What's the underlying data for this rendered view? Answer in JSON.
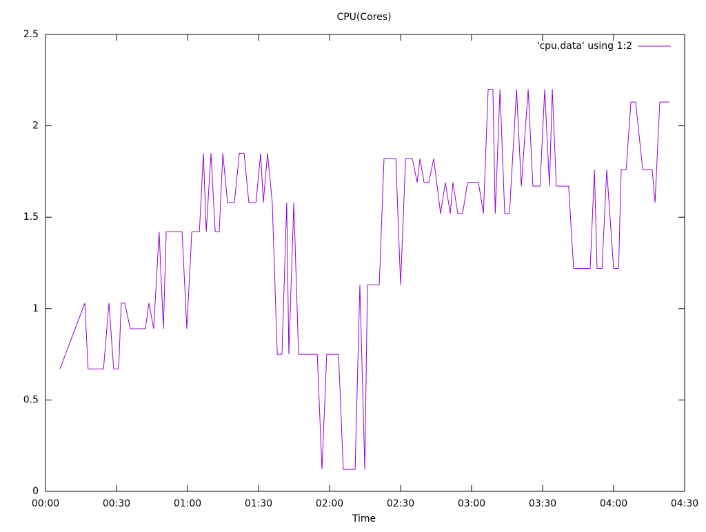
{
  "chart_data": {
    "type": "line",
    "title": "CPU(Cores)",
    "x_label": "Time",
    "x": [
      6.1,
      16.6,
      18,
      24.5,
      26.8,
      28.8,
      30.9,
      32,
      33.5,
      35.8,
      42.2,
      43.7,
      45.7,
      48,
      49.8,
      51,
      57.7,
      59.7,
      61.8,
      65,
      66.7,
      67.9,
      69.9,
      71.7,
      73.4,
      74.9,
      76.9,
      79.8,
      81.9,
      83.9,
      85.9,
      88.9,
      90.9,
      92,
      93.8,
      95.8,
      97.9,
      99.9,
      101.9,
      102.8,
      104.9,
      106.9,
      114.8,
      116.8,
      118.8,
      123.8,
      125.8,
      130.8,
      132.8,
      134.9,
      136,
      141,
      143,
      148,
      150,
      152.1,
      155,
      157,
      158.2,
      159.9,
      161.9,
      164,
      166.9,
      168.9,
      171,
      172.1,
      174.2,
      176.2,
      178.3,
      182.9,
      185,
      187,
      189,
      190,
      192,
      194,
      196,
      199,
      201,
      203.9,
      205.9,
      208.9,
      210.9,
      212.9,
      214.1,
      215.8,
      221,
      223.1,
      230.1,
      231.9,
      233,
      235.1,
      237.1,
      240,
      242.1,
      243.2,
      245.3,
      247.3,
      249.3,
      252.3,
      256.3,
      257.5,
      259.5,
      263.6
    ],
    "series": [
      {
        "name": "'cpu.data' using 1:2",
        "color": "#9400d3",
        "values": [
          0.67,
          1.03,
          0.67,
          0.67,
          1.03,
          0.67,
          0.67,
          1.03,
          1.03,
          0.89,
          0.89,
          1.03,
          0.89,
          1.42,
          0.89,
          1.42,
          1.42,
          0.89,
          1.42,
          1.42,
          1.85,
          1.42,
          1.85,
          1.42,
          1.42,
          1.85,
          1.58,
          1.58,
          1.85,
          1.85,
          1.58,
          1.58,
          1.85,
          1.58,
          1.85,
          1.58,
          0.75,
          0.75,
          1.58,
          0.75,
          1.58,
          0.75,
          0.75,
          0.12,
          0.75,
          0.75,
          0.12,
          0.12,
          1.13,
          0.12,
          1.13,
          1.13,
          1.82,
          1.82,
          1.13,
          1.82,
          1.82,
          1.69,
          1.82,
          1.69,
          1.69,
          1.82,
          1.52,
          1.69,
          1.52,
          1.69,
          1.52,
          1.52,
          1.69,
          1.69,
          1.52,
          2.2,
          2.2,
          1.52,
          2.2,
          1.52,
          1.52,
          2.2,
          1.67,
          2.2,
          1.67,
          1.67,
          2.2,
          1.67,
          2.2,
          1.67,
          1.67,
          1.22,
          1.22,
          1.76,
          1.22,
          1.22,
          1.76,
          1.22,
          1.22,
          1.76,
          1.76,
          2.13,
          2.13,
          1.76,
          1.76,
          1.58,
          2.13,
          2.13
        ]
      }
    ],
    "xlim": [
      0,
      270
    ],
    "xticks": [
      {
        "value": 0,
        "label": "00:00"
      },
      {
        "value": 30,
        "label": "00:30"
      },
      {
        "value": 60,
        "label": "01:00"
      },
      {
        "value": 90,
        "label": "01:30"
      },
      {
        "value": 120,
        "label": "02:00"
      },
      {
        "value": 150,
        "label": "02:30"
      },
      {
        "value": 180,
        "label": "03:00"
      },
      {
        "value": 210,
        "label": "03:30"
      },
      {
        "value": 240,
        "label": "04:00"
      },
      {
        "value": 270,
        "label": "04:30"
      }
    ],
    "ylim": [
      0,
      2.5
    ],
    "yticks": [
      0,
      0.5,
      1,
      1.5,
      2,
      2.5
    ],
    "grid": false,
    "legend": "top-right"
  }
}
